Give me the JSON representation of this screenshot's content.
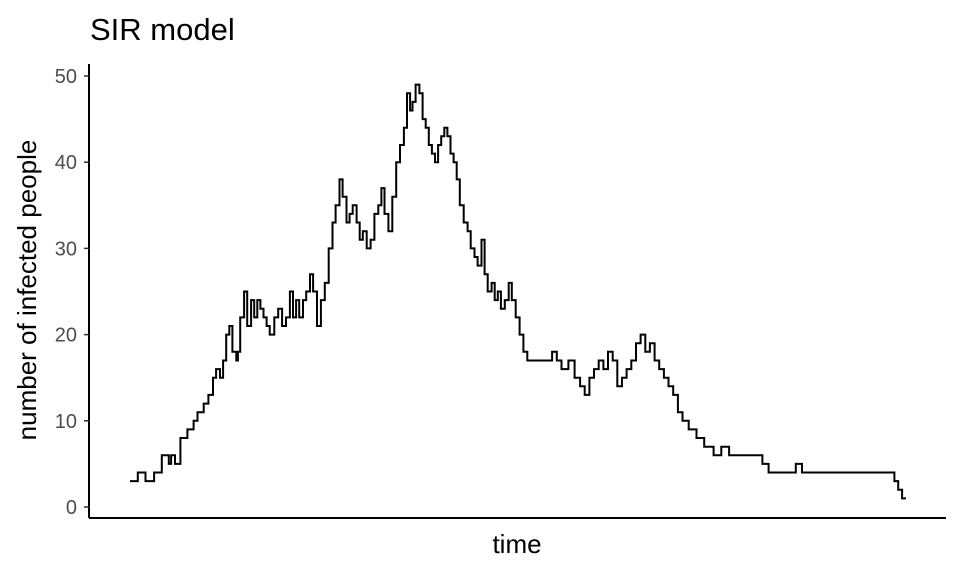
{
  "chart_data": {
    "type": "line",
    "title": "SIR model",
    "xlabel": "time",
    "ylabel": "number of infected people",
    "ylim": [
      0,
      50
    ],
    "xlim": [
      0,
      1
    ],
    "y_ticks": [
      0,
      10,
      20,
      30,
      40,
      50
    ],
    "x_ticks": [],
    "grid": false,
    "legend": "none",
    "line_color": "#000000",
    "step": true,
    "series": [
      {
        "points": [
          [
            0.0,
            3
          ],
          [
            0.01,
            4
          ],
          [
            0.02,
            3
          ],
          [
            0.031,
            4
          ],
          [
            0.041,
            6
          ],
          [
            0.05,
            5
          ],
          [
            0.053,
            6
          ],
          [
            0.058,
            5
          ],
          [
            0.065,
            8
          ],
          [
            0.074,
            9
          ],
          [
            0.082,
            10
          ],
          [
            0.087,
            11
          ],
          [
            0.095,
            12
          ],
          [
            0.101,
            13
          ],
          [
            0.107,
            15
          ],
          [
            0.111,
            16
          ],
          [
            0.116,
            15
          ],
          [
            0.12,
            17
          ],
          [
            0.124,
            20
          ],
          [
            0.128,
            21
          ],
          [
            0.132,
            18
          ],
          [
            0.137,
            17
          ],
          [
            0.139,
            18
          ],
          [
            0.142,
            22
          ],
          [
            0.147,
            25
          ],
          [
            0.151,
            21
          ],
          [
            0.156,
            24
          ],
          [
            0.16,
            22
          ],
          [
            0.164,
            24
          ],
          [
            0.168,
            23
          ],
          [
            0.172,
            22
          ],
          [
            0.176,
            21
          ],
          [
            0.18,
            20
          ],
          [
            0.186,
            22
          ],
          [
            0.191,
            23
          ],
          [
            0.196,
            21
          ],
          [
            0.201,
            22
          ],
          [
            0.206,
            25
          ],
          [
            0.21,
            22
          ],
          [
            0.214,
            24
          ],
          [
            0.218,
            22
          ],
          [
            0.223,
            24
          ],
          [
            0.227,
            25
          ],
          [
            0.232,
            27
          ],
          [
            0.236,
            25
          ],
          [
            0.241,
            21
          ],
          [
            0.246,
            24
          ],
          [
            0.251,
            26
          ],
          [
            0.256,
            30
          ],
          [
            0.261,
            33
          ],
          [
            0.265,
            35
          ],
          [
            0.27,
            38
          ],
          [
            0.274,
            36
          ],
          [
            0.279,
            33
          ],
          [
            0.283,
            34
          ],
          [
            0.287,
            35
          ],
          [
            0.292,
            33
          ],
          [
            0.296,
            31
          ],
          [
            0.3,
            32
          ],
          [
            0.305,
            30
          ],
          [
            0.31,
            31
          ],
          [
            0.315,
            34
          ],
          [
            0.32,
            35
          ],
          [
            0.324,
            37
          ],
          [
            0.328,
            34
          ],
          [
            0.333,
            32
          ],
          [
            0.338,
            36
          ],
          [
            0.343,
            40
          ],
          [
            0.348,
            42
          ],
          [
            0.353,
            44
          ],
          [
            0.357,
            48
          ],
          [
            0.361,
            46
          ],
          [
            0.364,
            47
          ],
          [
            0.368,
            49
          ],
          [
            0.373,
            48
          ],
          [
            0.377,
            45
          ],
          [
            0.381,
            44
          ],
          [
            0.385,
            42
          ],
          [
            0.389,
            41
          ],
          [
            0.393,
            40
          ],
          [
            0.397,
            42
          ],
          [
            0.401,
            43
          ],
          [
            0.405,
            44
          ],
          [
            0.409,
            43
          ],
          [
            0.413,
            41
          ],
          [
            0.417,
            40
          ],
          [
            0.421,
            38
          ],
          [
            0.425,
            35
          ],
          [
            0.43,
            33
          ],
          [
            0.435,
            32
          ],
          [
            0.439,
            30
          ],
          [
            0.444,
            29
          ],
          [
            0.448,
            28
          ],
          [
            0.453,
            31
          ],
          [
            0.457,
            27
          ],
          [
            0.461,
            25
          ],
          [
            0.466,
            26
          ],
          [
            0.47,
            24
          ],
          [
            0.474,
            25
          ],
          [
            0.478,
            23
          ],
          [
            0.483,
            24
          ],
          [
            0.488,
            26
          ],
          [
            0.492,
            24
          ],
          [
            0.497,
            22
          ],
          [
            0.502,
            20
          ],
          [
            0.507,
            18
          ],
          [
            0.512,
            17
          ],
          [
            0.532,
            17
          ],
          [
            0.544,
            18
          ],
          [
            0.55,
            17
          ],
          [
            0.556,
            16
          ],
          [
            0.565,
            17
          ],
          [
            0.573,
            15
          ],
          [
            0.58,
            14
          ],
          [
            0.586,
            13
          ],
          [
            0.592,
            15
          ],
          [
            0.598,
            16
          ],
          [
            0.604,
            17
          ],
          [
            0.61,
            16
          ],
          [
            0.616,
            18
          ],
          [
            0.622,
            17
          ],
          [
            0.628,
            14
          ],
          [
            0.634,
            15
          ],
          [
            0.64,
            16
          ],
          [
            0.646,
            17
          ],
          [
            0.652,
            19
          ],
          [
            0.658,
            20
          ],
          [
            0.664,
            18
          ],
          [
            0.67,
            19
          ],
          [
            0.676,
            17
          ],
          [
            0.682,
            16
          ],
          [
            0.688,
            15
          ],
          [
            0.694,
            14
          ],
          [
            0.7,
            13
          ],
          [
            0.706,
            11
          ],
          [
            0.712,
            10
          ],
          [
            0.72,
            9
          ],
          [
            0.73,
            8
          ],
          [
            0.74,
            7
          ],
          [
            0.752,
            6
          ],
          [
            0.762,
            7
          ],
          [
            0.772,
            6
          ],
          [
            0.79,
            6
          ],
          [
            0.808,
            6
          ],
          [
            0.815,
            5
          ],
          [
            0.823,
            4
          ],
          [
            0.848,
            4
          ],
          [
            0.858,
            5
          ],
          [
            0.866,
            4
          ],
          [
            0.89,
            4
          ],
          [
            0.98,
            4
          ],
          [
            0.985,
            3
          ],
          [
            0.99,
            2
          ],
          [
            0.995,
            1
          ],
          [
            1.0,
            1
          ]
        ]
      }
    ]
  }
}
